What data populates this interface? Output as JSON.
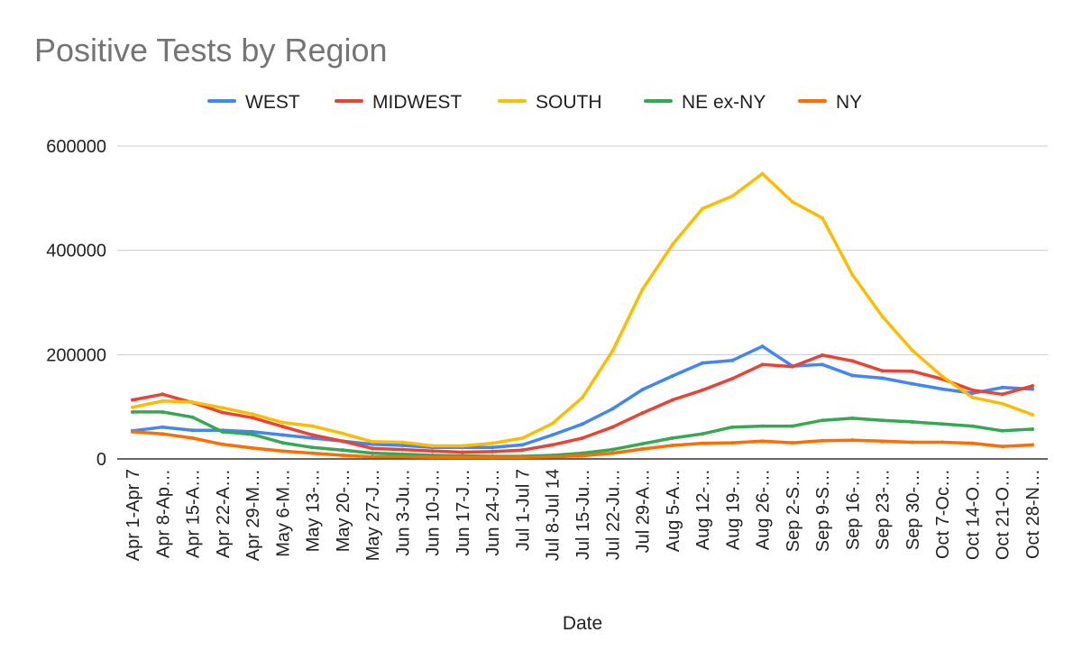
{
  "chart_data": {
    "type": "line",
    "title": "Positive Tests by Region",
    "xlabel": "Date",
    "ylabel": "",
    "ylim": [
      0,
      600000
    ],
    "yticks": [
      "0",
      "200000",
      "400000",
      "600000"
    ],
    "ytick_values": [
      0,
      200000,
      400000,
      600000
    ],
    "grid": true,
    "legend_position": "top",
    "categories": [
      "Apr 1-Apr 7",
      "Apr 8-Ap…",
      "Apr 15-A…",
      "Apr 22-A…",
      "Apr 29-M…",
      "May 6-M…",
      "May 13-…",
      "May 20-…",
      "May 27-J…",
      "Jun 3-Ju…",
      "Jun 10-J…",
      "Jun 17-J…",
      "Jun 24-J…",
      "Jul 1-Jul 7",
      "Jul 8-Jul 14",
      "Jul 15-Ju…",
      "Jul 22-Ju…",
      "Jul 29-A…",
      "Aug 5-A…",
      "Aug 12-…",
      "Aug 19-…",
      "Aug 26-…",
      "Sep 2-S…",
      "Sep 9-S…",
      "Sep 16-…",
      "Sep 23-…",
      "Sep 30-…",
      "Oct 7-Oc…",
      "Oct 14-O…",
      "Oct 21-O…",
      "Oct 28-N…"
    ],
    "series": [
      {
        "name": "WEST",
        "color": "#4285F4",
        "values": [
          54000,
          61000,
          55000,
          55000,
          52000,
          46000,
          40000,
          34000,
          28000,
          26000,
          22000,
          22000,
          22000,
          27000,
          46000,
          67000,
          96000,
          133000,
          159000,
          184000,
          189000,
          216000,
          178000,
          181000,
          160000,
          155000,
          144000,
          134000,
          126000,
          137000,
          134000
        ]
      },
      {
        "name": "MIDWEST",
        "color": "#EA4335",
        "values": [
          113000,
          124000,
          108000,
          89000,
          79000,
          62000,
          46000,
          34000,
          20000,
          18000,
          15000,
          13000,
          14000,
          17000,
          27000,
          40000,
          61000,
          88000,
          113000,
          132000,
          154000,
          181000,
          177000,
          199000,
          188000,
          169000,
          168000,
          153000,
          132000,
          124000,
          140000
        ]
      },
      {
        "name": "SOUTH",
        "color": "#FBBC04",
        "values": [
          99000,
          111000,
          109000,
          98000,
          86000,
          70000,
          63000,
          49000,
          33000,
          32000,
          25000,
          25000,
          30000,
          40000,
          68000,
          118000,
          207000,
          325000,
          411000,
          480000,
          504000,
          547000,
          493000,
          462000,
          353000,
          273000,
          208000,
          158000,
          118000,
          106000,
          85000
        ]
      },
      {
        "name": "NE ex-NY",
        "color": "#34A853",
        "values": [
          90000,
          90000,
          80000,
          52000,
          47000,
          31000,
          22000,
          17000,
          11000,
          9000,
          7000,
          6000,
          5000,
          5000,
          7000,
          11000,
          18000,
          29000,
          40000,
          48000,
          61000,
          63000,
          63000,
          74000,
          78000,
          74000,
          71000,
          67000,
          63000,
          54000,
          57000
        ]
      },
      {
        "name": "NY",
        "color": "#FF6D01",
        "values": [
          52000,
          48000,
          40000,
          28000,
          21000,
          15000,
          11000,
          7000,
          4000,
          4000,
          3000,
          3000,
          3000,
          3000,
          4000,
          6000,
          11000,
          19000,
          26000,
          30000,
          31000,
          34000,
          31000,
          35000,
          36000,
          34000,
          32000,
          32000,
          30000,
          24000,
          27000
        ]
      }
    ]
  }
}
